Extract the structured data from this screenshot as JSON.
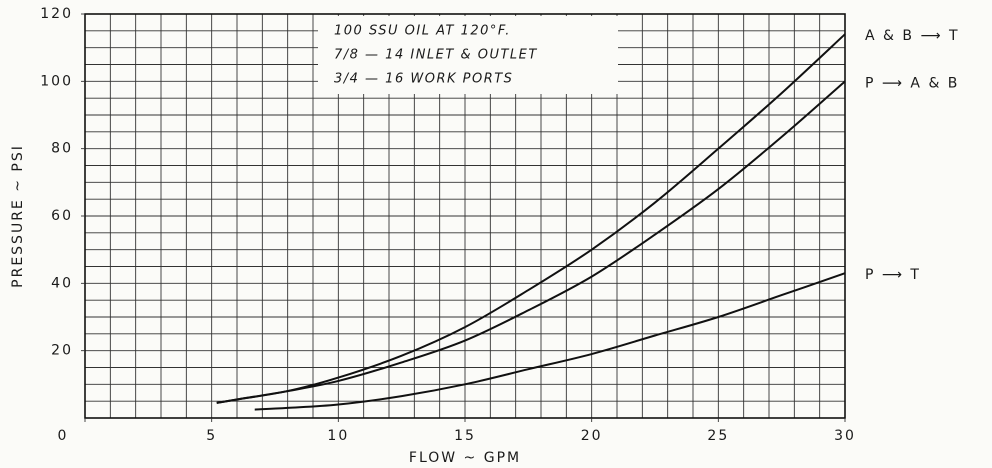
{
  "chart_data": {
    "type": "line",
    "x_label": "FLOW ~ GPM",
    "y_label": "PRESSURE ~ PSI",
    "annotations": [
      "100 SSU OIL AT 120°F.",
      "7/8 — 14 INLET & OUTLET",
      "3/4 — 16 WORK PORTS"
    ],
    "series": [
      {
        "name": "A & B ⟶ T",
        "color": "#111111",
        "x": [
          5.2,
          6,
          8,
          10,
          12.5,
          15,
          17.5,
          20,
          22.5,
          25,
          27.5,
          30
        ],
        "values": [
          4.5,
          5.5,
          8,
          12,
          18.5,
          27,
          38,
          50,
          64,
          80,
          96.5,
          114
        ]
      },
      {
        "name": "P ⟶ A & B",
        "color": "#111111",
        "x": [
          5.2,
          6,
          8,
          10,
          12.5,
          15,
          17.5,
          20,
          22.5,
          25,
          27.5,
          30
        ],
        "values": [
          4.5,
          5.5,
          8,
          11,
          16.5,
          23,
          32,
          42,
          54.5,
          68,
          83.5,
          100
        ]
      },
      {
        "name": "P ⟶ T",
        "color": "#111111",
        "x": [
          6.7,
          8,
          10,
          12.5,
          15,
          17.5,
          20,
          22.5,
          25,
          27.5,
          30
        ],
        "values": [
          2.5,
          3,
          4,
          6.5,
          10,
          14.5,
          19,
          24.5,
          30,
          36.5,
          43
        ]
      }
    ],
    "xlim": [
      0,
      30
    ],
    "xticks": [
      0,
      5,
      10,
      15,
      20,
      25,
      30
    ],
    "ylim": [
      0,
      120
    ],
    "yticks": [
      20,
      40,
      60,
      80,
      100,
      120
    ],
    "grid": true,
    "xgrid_step": 1,
    "ygrid_step": 5
  }
}
